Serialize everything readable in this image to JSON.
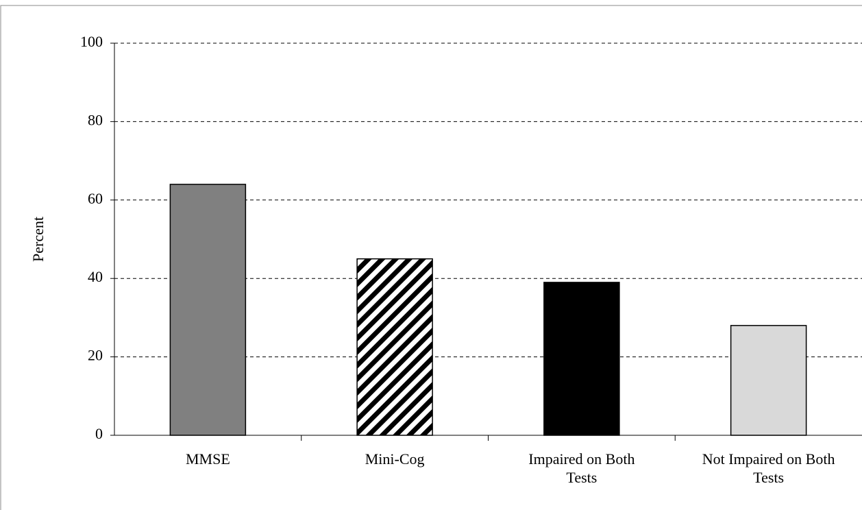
{
  "chart_data": {
    "type": "bar",
    "y_label": "Percent",
    "categories": [
      "MMSE",
      "Mini-Cog",
      "Impaired on Both Tests",
      "Not Impaired on Both Tests"
    ],
    "values": [
      64,
      45,
      39,
      28
    ],
    "colors": [
      "#808080",
      "#000000",
      "#000000",
      "#d9d9d9"
    ],
    "patterns": [
      "solid",
      "diagonal-stripes",
      "solid",
      "solid"
    ],
    "ylim": [
      0,
      100
    ],
    "yticks": [
      0,
      20,
      40,
      60,
      80,
      100
    ],
    "grid": true
  }
}
